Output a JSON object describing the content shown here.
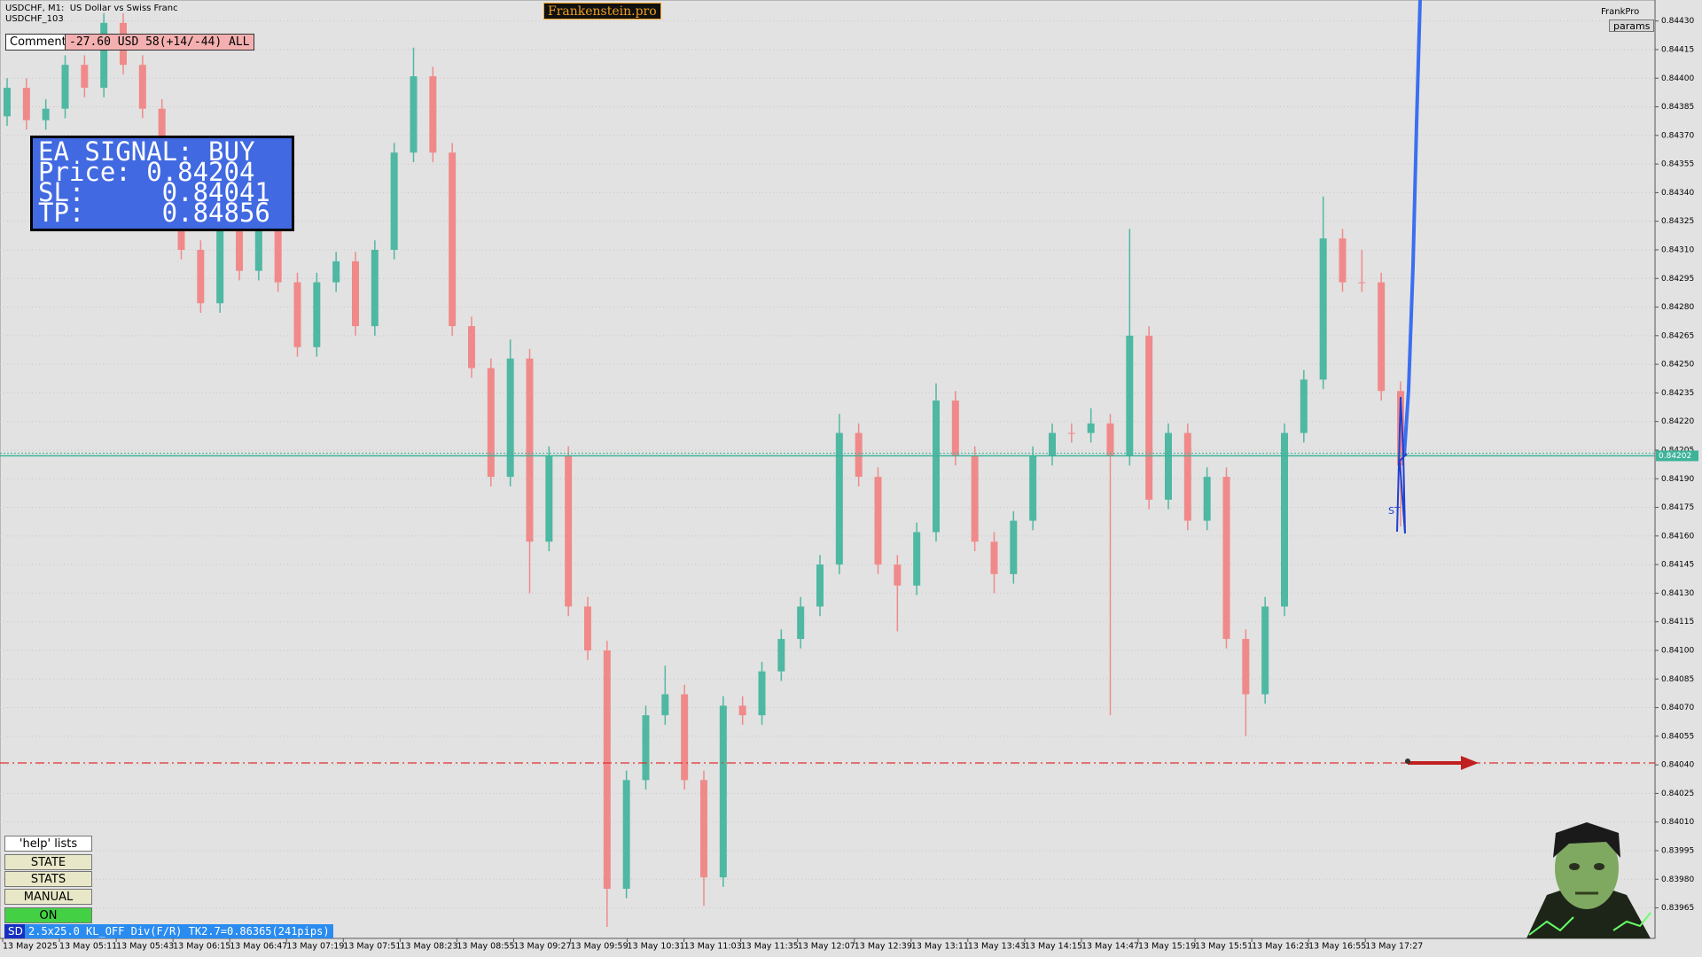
{
  "header": {
    "symbol": "USDCHF, M1:  US Dollar vs Swiss Franc",
    "account": "USDCHF_103",
    "brand": "Frankenstein.pro",
    "profile": "FrankPro",
    "params": "params"
  },
  "comment": {
    "label": "Comment",
    "text": "-27.60 USD 58(+14/-44) ALL"
  },
  "signal": {
    "lines": [
      "EA SIGNAL: BUY",
      "Price: 0.84204",
      "SL:     0.84041",
      "TP:     0.84856"
    ]
  },
  "buttons": [
    "'help' lists cmds",
    "STATE",
    "STATS",
    "MANUAL",
    "ON"
  ],
  "status": {
    "tag": "SD",
    "text": "2.5x25.0 KL_OFF Div(F/R) TK2.7=0.86365(241pips)"
  },
  "marker": "ST",
  "chart_data": {
    "type": "candlestick",
    "time_labels": [
      "13 May 2025",
      "13 May 05:11",
      "13 May 05:43",
      "13 May 06:15",
      "13 May 06:47",
      "13 May 07:19",
      "13 May 07:51",
      "13 May 08:23",
      "13 May 08:55",
      "13 May 09:27",
      "13 May 09:59",
      "13 May 10:31",
      "13 May 11:03",
      "13 May 11:35",
      "13 May 12:07",
      "13 May 12:39",
      "13 May 13:11",
      "13 May 13:43",
      "13 May 14:15",
      "13 May 14:47",
      "13 May 15:19",
      "13 May 15:51",
      "13 May 16:23",
      "13 May 16:55",
      "13 May 17:27"
    ],
    "open": [
      0.8438,
      0.84395,
      0.84378,
      0.84384,
      0.84407,
      0.84395,
      0.84429,
      0.84407,
      0.84384,
      0.84356,
      0.8431,
      0.84282,
      0.84321,
      0.84299,
      0.84327,
      0.84293,
      0.84259,
      0.84293,
      0.84304,
      0.8427,
      0.8431,
      0.84361,
      0.84401,
      0.84361,
      0.8427,
      0.84248,
      0.84191,
      0.84253,
      0.84157,
      0.84202,
      0.84123,
      0.841,
      0.83975,
      0.84032,
      0.84066,
      0.84077,
      0.84032,
      0.83981,
      0.84071,
      0.84066,
      0.84089,
      0.84106,
      0.84123,
      0.84145,
      0.84214,
      0.84191,
      0.84145,
      0.84134,
      0.84162,
      0.84231,
      0.84202,
      0.84157,
      0.8414,
      0.84168,
      0.84202,
      0.84214,
      0.84214,
      0.84219,
      0.84202,
      0.84265,
      0.84179,
      0.84214,
      0.84168,
      0.84191,
      0.84106,
      0.84077,
      0.84123,
      0.84214,
      0.84242,
      0.84316,
      0.84293,
      0.84293,
      0.84236
    ],
    "high": [
      0.844,
      0.844,
      0.84389,
      0.84412,
      0.84412,
      0.84434,
      0.84434,
      0.84412,
      0.84389,
      0.84361,
      0.84315,
      0.84326,
      0.84326,
      0.84332,
      0.84332,
      0.84298,
      0.84298,
      0.84309,
      0.84309,
      0.84315,
      0.84366,
      0.84416,
      0.84406,
      0.84366,
      0.84275,
      0.84253,
      0.84263,
      0.84258,
      0.84207,
      0.84207,
      0.84128,
      0.84105,
      0.84037,
      0.84071,
      0.84092,
      0.84082,
      0.84037,
      0.84076,
      0.84076,
      0.84094,
      0.84111,
      0.84128,
      0.8415,
      0.84224,
      0.84219,
      0.84196,
      0.8415,
      0.84167,
      0.8424,
      0.84236,
      0.84207,
      0.84162,
      0.84173,
      0.84207,
      0.84219,
      0.84219,
      0.84227,
      0.84224,
      0.84321,
      0.8427,
      0.84219,
      0.84219,
      0.84196,
      0.84196,
      0.84111,
      0.84128,
      0.84219,
      0.84247,
      0.84338,
      0.84321,
      0.8431,
      0.84298,
      0.84241
    ],
    "low": [
      0.84375,
      0.84373,
      0.84373,
      0.84379,
      0.8439,
      0.8439,
      0.84402,
      0.84379,
      0.84351,
      0.84305,
      0.84277,
      0.84277,
      0.84294,
      0.84294,
      0.84288,
      0.84254,
      0.84254,
      0.84288,
      0.84265,
      0.84265,
      0.84305,
      0.84356,
      0.84356,
      0.84265,
      0.84243,
      0.84186,
      0.84186,
      0.8413,
      0.84152,
      0.84118,
      0.84095,
      0.83955,
      0.8397,
      0.84027,
      0.84061,
      0.84027,
      0.83966,
      0.83976,
      0.84061,
      0.84061,
      0.84084,
      0.84101,
      0.84118,
      0.8414,
      0.84186,
      0.8414,
      0.8411,
      0.84129,
      0.84157,
      0.84197,
      0.84152,
      0.8413,
      0.84135,
      0.84163,
      0.84197,
      0.84209,
      0.84209,
      0.84066,
      0.84197,
      0.84174,
      0.84174,
      0.84163,
      0.84163,
      0.84101,
      0.84055,
      0.84072,
      0.84118,
      0.84209,
      0.84237,
      0.84288,
      0.84288,
      0.84231,
      0.84165
    ],
    "close": [
      0.84395,
      0.84378,
      0.84384,
      0.84407,
      0.84395,
      0.84429,
      0.84407,
      0.84384,
      0.84356,
      0.8431,
      0.84282,
      0.84321,
      0.84299,
      0.84327,
      0.84293,
      0.84259,
      0.84293,
      0.84304,
      0.8427,
      0.8431,
      0.84361,
      0.84401,
      0.84361,
      0.8427,
      0.84248,
      0.84191,
      0.84253,
      0.84157,
      0.84202,
      0.84123,
      0.841,
      0.83975,
      0.84032,
      0.84066,
      0.84077,
      0.84032,
      0.83981,
      0.84071,
      0.84066,
      0.84089,
      0.84106,
      0.84123,
      0.84145,
      0.84214,
      0.84191,
      0.84145,
      0.84134,
      0.84162,
      0.84231,
      0.84202,
      0.84157,
      0.8414,
      0.84168,
      0.84202,
      0.84214,
      0.84214,
      0.84219,
      0.84202,
      0.84265,
      0.84179,
      0.84214,
      0.84168,
      0.84191,
      0.84106,
      0.84077,
      0.84123,
      0.84214,
      0.84242,
      0.84316,
      0.84293,
      0.84293,
      0.84236,
      0.84197
    ],
    "up_color": "#4fb8a2",
    "down_color": "#f08a8a",
    "ylim": [
      0.83949,
      0.84441
    ],
    "yticks": [
      {
        "value": 0.8443,
        "label": "0.84430"
      },
      0.84415,
      {
        "value": 0.844,
        "label": "0.84400"
      },
      0.84385,
      {
        "value": 0.8437,
        "label": "0.84370"
      },
      0.84355,
      {
        "value": 0.8434,
        "label": "0.84340"
      },
      0.84325,
      {
        "value": 0.8431,
        "label": "0.84310"
      },
      0.84295,
      {
        "value": 0.8428,
        "label": "0.84280"
      },
      0.84265,
      {
        "value": 0.8425,
        "label": "0.84250"
      },
      0.84235,
      {
        "value": 0.8422,
        "label": "0.84220"
      },
      0.84205,
      {
        "value": 0.8419,
        "label": "0.84190"
      },
      0.84175,
      {
        "value": 0.8416,
        "label": "0.84160"
      },
      0.84145,
      {
        "value": 0.8413,
        "label": "0.84130"
      },
      0.84115,
      {
        "value": 0.841,
        "label": "0.84100"
      },
      0.84085,
      {
        "value": 0.8407,
        "label": "0.84070"
      },
      0.84055,
      {
        "value": 0.8404,
        "label": "0.84040"
      },
      0.84025,
      {
        "value": 0.8401,
        "label": "0.84010"
      },
      0.83995,
      {
        "value": 0.8398,
        "label": "0.83980"
      },
      0.83965
    ],
    "grid": true,
    "bid": 0.84202,
    "bid_color": "#3fb39a",
    "stop_loss": 0.84041,
    "stop_loss_color": "#e03030"
  }
}
